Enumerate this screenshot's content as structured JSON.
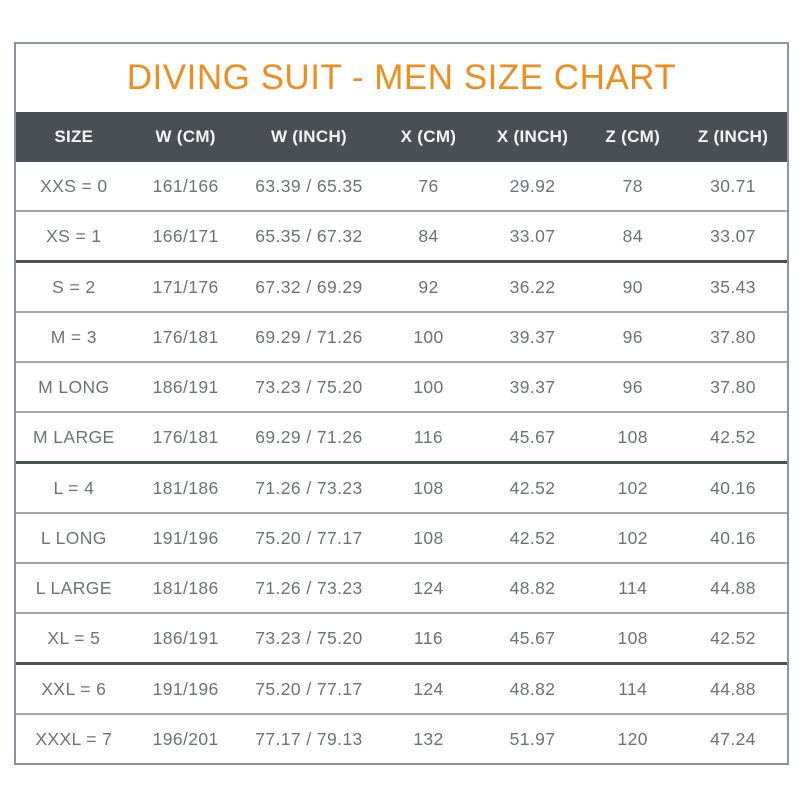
{
  "title": "DIVING SUIT - MEN SIZE CHART",
  "colors": {
    "title_accent": "#EF8E1C",
    "header_background": "#4A4E55",
    "header_text": "#F4F4F4",
    "cell_text": "#6E7278",
    "row_separator": "#A3A6AA",
    "group_separator": "#4D525A",
    "outer_border": "#8E9399"
  },
  "table": {
    "columns": [
      "SIZE",
      "W (CM)",
      "W (INCH)",
      "X (CM)",
      "X (INCH)",
      "Z (CM)",
      "Z (INCH)"
    ],
    "rows": [
      [
        "XXS = 0",
        "161/166",
        "63.39 / 65.35",
        "76",
        "29.92",
        "78",
        "30.71"
      ],
      [
        "XS = 1",
        "166/171",
        "65.35 / 67.32",
        "84",
        "33.07",
        "84",
        "33.07"
      ],
      [
        "S = 2",
        "171/176",
        "67.32 / 69.29",
        "92",
        "36.22",
        "90",
        "35.43"
      ],
      [
        "M = 3",
        "176/181",
        "69.29 / 71.26",
        "100",
        "39.37",
        "96",
        "37.80"
      ],
      [
        "M LONG",
        "186/191",
        "73.23 / 75.20",
        "100",
        "39.37",
        "96",
        "37.80"
      ],
      [
        "M LARGE",
        "176/181",
        "69.29 / 71.26",
        "116",
        "45.67",
        "108",
        "42.52"
      ],
      [
        "L = 4",
        "181/186",
        "71.26 / 73.23",
        "108",
        "42.52",
        "102",
        "40.16"
      ],
      [
        "L LONG",
        "191/196",
        "75.20 / 77.17",
        "108",
        "42.52",
        "102",
        "40.16"
      ],
      [
        "L LARGE",
        "181/186",
        "71.26 / 73.23",
        "124",
        "48.82",
        "114",
        "44.88"
      ],
      [
        "XL = 5",
        "186/191",
        "73.23 / 75.20",
        "116",
        "45.67",
        "108",
        "42.52"
      ],
      [
        "XXL = 6",
        "191/196",
        "75.20 / 77.17",
        "124",
        "48.82",
        "114",
        "44.88"
      ],
      [
        "XXXL = 7",
        "196/201",
        "77.17 / 79.13",
        "132",
        "51.97",
        "120",
        "47.24"
      ]
    ],
    "group_separator_before_rows": [
      2,
      6,
      10
    ]
  },
  "chart_data": {
    "type": "table",
    "title": "DIVING SUIT - MEN SIZE CHART",
    "columns": [
      "SIZE",
      "W (CM)",
      "W (INCH)",
      "X (CM)",
      "X (INCH)",
      "Z (CM)",
      "Z (INCH)"
    ],
    "rows": [
      [
        "XXS = 0",
        "161/166",
        "63.39 / 65.35",
        "76",
        "29.92",
        "78",
        "30.71"
      ],
      [
        "XS = 1",
        "166/171",
        "65.35 / 67.32",
        "84",
        "33.07",
        "84",
        "33.07"
      ],
      [
        "S = 2",
        "171/176",
        "67.32 / 69.29",
        "92",
        "36.22",
        "90",
        "35.43"
      ],
      [
        "M = 3",
        "176/181",
        "69.29 / 71.26",
        "100",
        "39.37",
        "96",
        "37.80"
      ],
      [
        "M LONG",
        "186/191",
        "73.23 / 75.20",
        "100",
        "39.37",
        "96",
        "37.80"
      ],
      [
        "M LARGE",
        "176/181",
        "69.29 / 71.26",
        "116",
        "45.67",
        "108",
        "42.52"
      ],
      [
        "L = 4",
        "181/186",
        "71.26 / 73.23",
        "108",
        "42.52",
        "102",
        "40.16"
      ],
      [
        "L LONG",
        "191/196",
        "75.20 / 77.17",
        "108",
        "42.52",
        "102",
        "40.16"
      ],
      [
        "L LARGE",
        "181/186",
        "71.26 / 73.23",
        "124",
        "48.82",
        "114",
        "44.88"
      ],
      [
        "XL = 5",
        "186/191",
        "73.23 / 75.20",
        "116",
        "45.67",
        "108",
        "42.52"
      ],
      [
        "XXL = 6",
        "191/196",
        "75.20 / 77.17",
        "124",
        "48.82",
        "114",
        "44.88"
      ],
      [
        "XXXL = 7",
        "196/201",
        "77.17 / 79.13",
        "132",
        "51.97",
        "120",
        "47.24"
      ]
    ]
  }
}
